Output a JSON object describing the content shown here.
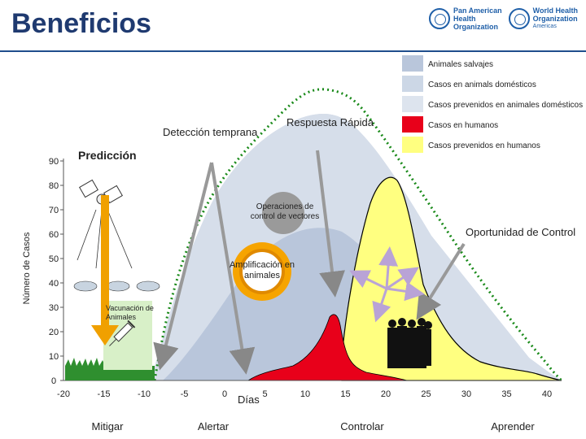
{
  "header": {
    "title": "Beneficios",
    "logo_paho_line1": "Pan American",
    "logo_paho_line2": "Health",
    "logo_paho_line3": "Organization",
    "logo_who_line1": "World Health",
    "logo_who_line2": "Organization",
    "logo_who_line3": "Americas"
  },
  "legend": [
    {
      "label": "Animales salvajes",
      "color": "#b9c6db"
    },
    {
      "label": "Casos en animals domésticos",
      "color": "#ccd7e6"
    },
    {
      "label": "Casos prevenidos en animales domésticos",
      "color": "#dde4ee"
    },
    {
      "label": "Casos en humanos",
      "color": "#e8001a"
    },
    {
      "label": "Casos prevenidos en humanos",
      "color": "#ffff80"
    }
  ],
  "labels": {
    "deteccion": "Detección temprana",
    "respuesta": "Respuesta Rápida",
    "prediccion": "Predicción",
    "operaciones": "Operaciones de control de vectores",
    "oportunidad": "Oportunidad de Control",
    "amplificacion": "Amplificación en animales",
    "vacunacion": "Vacunación de Animales",
    "dias": "Días"
  },
  "stages": [
    "Mitigar",
    "Alertar",
    "Controlar",
    "Aprender"
  ],
  "chart_data": {
    "type": "area",
    "xlabel": "Días",
    "ylabel": "Número de Casos",
    "x_ticks": [
      -20,
      -15,
      -10,
      -5,
      0,
      5,
      10,
      15,
      20,
      25,
      30,
      35,
      40
    ],
    "y_ticks": [
      0,
      10,
      20,
      30,
      40,
      50,
      60,
      70,
      80,
      90
    ],
    "xlim": [
      -20,
      40
    ],
    "ylim": [
      0,
      90
    ]
  },
  "colors": {
    "title": "#1f3a70",
    "green_dotted": "#1a8a1a",
    "orange_arrow": "#f0a000",
    "gray_arrow": "#999999",
    "lilac_arrow": "#b9a3d6"
  }
}
